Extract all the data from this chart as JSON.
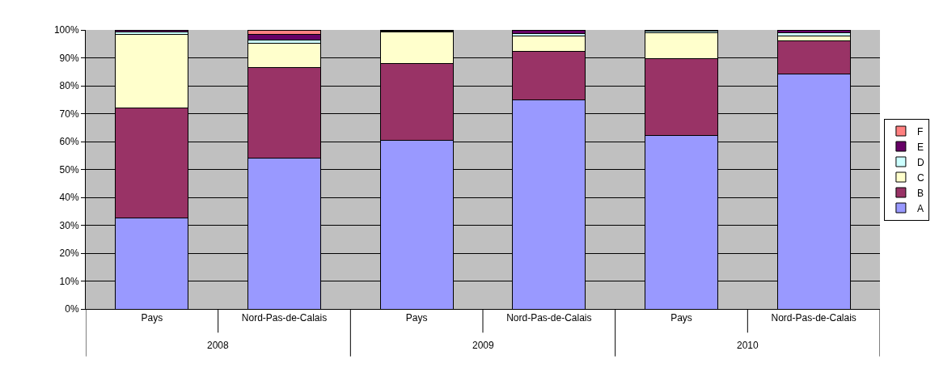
{
  "chart_data": {
    "type": "bar",
    "stacked": true,
    "categories": [
      "Pays",
      "Nord-Pas-de-Calais",
      "Pays",
      "Nord-Pas-de-Calais",
      "Pays",
      "Nord-Pas-de-Calais"
    ],
    "annotations": [
      "2008",
      "2009",
      "2010"
    ],
    "series": [
      {
        "name": "A",
        "color": "#9999ff",
        "values": [
          32.5,
          54,
          60.5,
          75,
          62.3,
          84.3
        ]
      },
      {
        "name": "B",
        "color": "#993366",
        "values": [
          39.5,
          32.5,
          27.5,
          17.3,
          27.4,
          11.7
        ]
      },
      {
        "name": "C",
        "color": "#ffffcc",
        "values": [
          26.3,
          8.8,
          11.2,
          5.4,
          9.2,
          1.9
        ]
      },
      {
        "name": "D",
        "color": "#ccffff",
        "values": [
          0.9,
          1.2,
          0.3,
          0.9,
          0.6,
          1.2
        ]
      },
      {
        "name": "E",
        "color": "#660066",
        "values": [
          0.8,
          2,
          0.5,
          1.4,
          0.5,
          0.8
        ]
      },
      {
        "name": "F",
        "color": "#ff8080",
        "values": [
          null,
          1.5,
          null,
          null,
          null,
          null
        ]
      }
    ],
    "ylim": [
      0,
      100
    ],
    "yticks": [
      {
        "value": 0,
        "label": "0%"
      },
      {
        "value": 10,
        "label": "10%"
      },
      {
        "value": 20,
        "label": "20%"
      },
      {
        "value": 30,
        "label": "30%"
      },
      {
        "value": 40,
        "label": "40%"
      },
      {
        "value": 50,
        "label": "50%"
      },
      {
        "value": 60,
        "label": "60%"
      },
      {
        "value": 70,
        "label": "70%"
      },
      {
        "value": 80,
        "label": "80%"
      },
      {
        "value": 90,
        "label": "90%"
      },
      {
        "value": 100,
        "label": "100%"
      }
    ],
    "grid": "y",
    "legend": "right"
  }
}
